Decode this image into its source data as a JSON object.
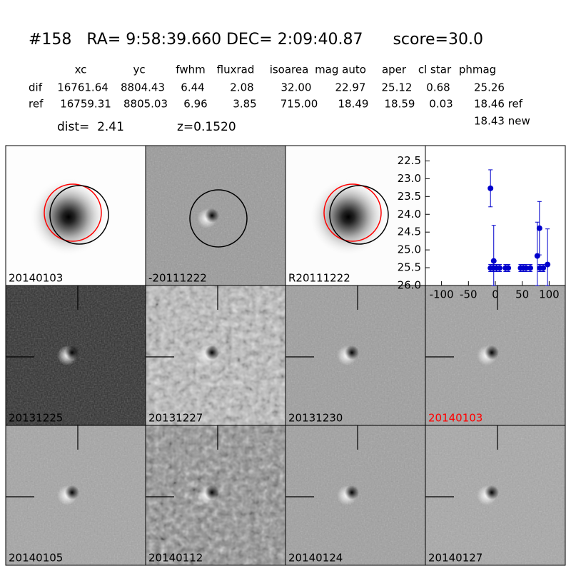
{
  "header": {
    "title": "#158   RA= 9:58:39.660 DEC= 2:09:40.87      score=30.0",
    "columns": [
      "xc",
      "yc",
      "fwhm",
      "fluxrad",
      "isoarea",
      "mag auto",
      "aper",
      "cl star",
      "phmag"
    ],
    "rows": [
      {
        "name": "dif",
        "cells": [
          "16761.64",
          "8804.43",
          "6.44",
          "2.08",
          "32.00",
          "22.97",
          "25.12",
          "0.68",
          "25.26"
        ]
      },
      {
        "name": "ref",
        "cells": [
          "16759.31",
          "8805.03",
          "6.96",
          "3.85",
          "715.00",
          "18.49",
          "18.59",
          "0.03",
          "18.46 ref"
        ]
      }
    ],
    "extra": "18.43 new",
    "dist": "dist=  2.41",
    "z": "z=0.1520"
  },
  "stamps": [
    {
      "label": "20140103"
    },
    {
      "label": "-20111222"
    },
    {
      "label": "R20111222"
    },
    {
      "label": "20131225"
    },
    {
      "label": "20131227"
    },
    {
      "label": "20131230"
    },
    {
      "label": "20140103",
      "color": "red"
    },
    {
      "label": "20140105"
    },
    {
      "label": "20140112"
    },
    {
      "label": "20140124"
    },
    {
      "label": "20140127"
    }
  ],
  "chart_data": {
    "type": "scatter",
    "color": "#0000cc",
    "x": [
      -9,
      -3,
      -9,
      -4,
      2,
      8,
      19,
      24,
      47,
      52,
      57,
      65,
      78,
      82,
      83,
      89,
      97
    ],
    "values": [
      23.27,
      25.31,
      25.51,
      25.51,
      25.51,
      25.51,
      25.51,
      25.51,
      25.51,
      25.51,
      25.51,
      25.51,
      25.17,
      24.39,
      25.51,
      25.51,
      25.41
    ],
    "errors": [
      0.52,
      1.0,
      0.1,
      0.1,
      0.1,
      0.1,
      0.1,
      0.1,
      0.1,
      0.1,
      0.1,
      0.1,
      0.95,
      0.75,
      0.1,
      0.1,
      1.0
    ],
    "xlim": [
      -130,
      130
    ],
    "ylim": [
      22.07,
      26.0
    ],
    "y_inverted": true,
    "xticks": [
      -100,
      -50,
      0,
      50,
      100
    ],
    "yticks": [
      22.5,
      {
        "value": 23,
        "label": "23.0"
      },
      23.5,
      {
        "value": 24,
        "label": "24.0"
      },
      24.5,
      {
        "value": 25,
        "label": "25.0"
      },
      25.5,
      {
        "value": 26,
        "label": "26.0"
      }
    ]
  }
}
